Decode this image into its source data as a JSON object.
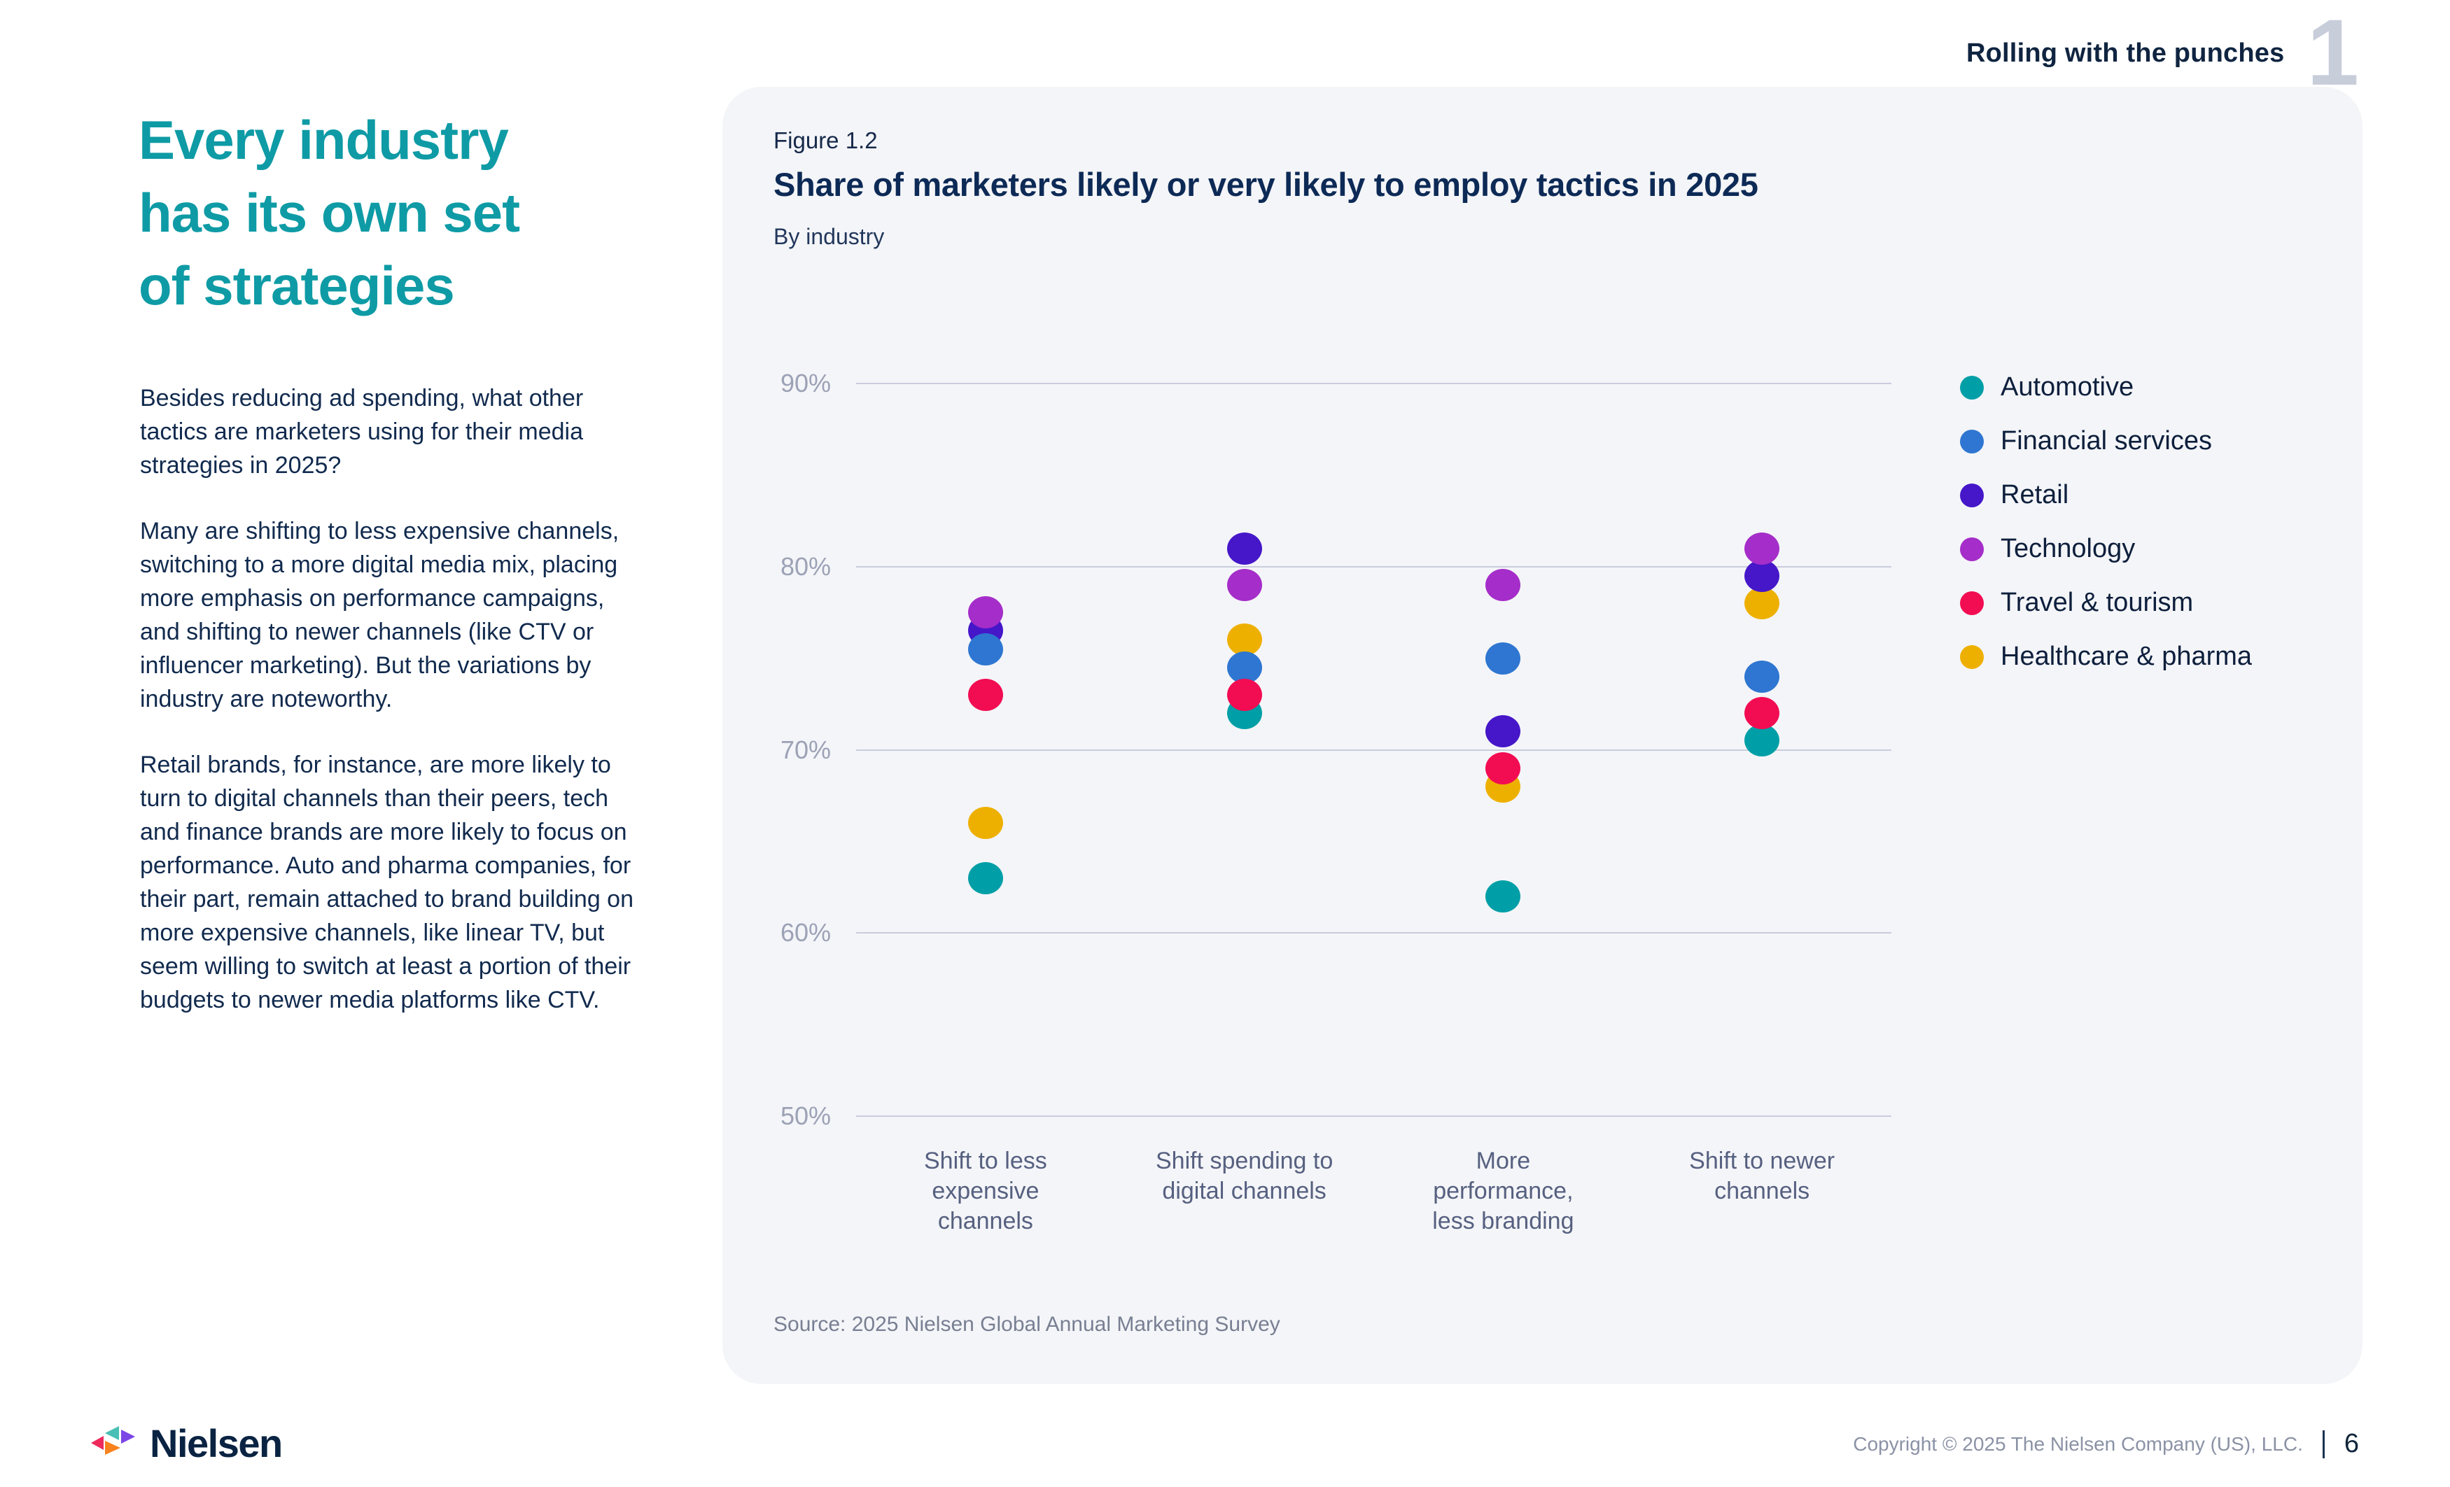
{
  "header": {
    "section_title": "Rolling with the punches",
    "section_number": "1"
  },
  "sidebar": {
    "heading_color": "#0e9ba5",
    "heading_lines": [
      "Every industry",
      "has its own set",
      "of strategies"
    ],
    "paragraphs": [
      "Besides reducing ad spending, what other tactics are marketers using for their media strategies in 2025?",
      "Many are shifting to less expensive channels, switching to a more digital media mix, placing more emphasis on performance campaigns, and shifting to newer channels (like CTV or influencer marketing). But the variations by industry are noteworthy.",
      "Retail brands, for instance, are more likely to turn to digital channels than their peers, tech and finance brands are more likely to focus on performance. Auto and pharma companies, for their part, remain attached to brand building on more expensive channels, like linear TV, but seem willing to switch at least a portion of their budgets to newer media platforms like CTV."
    ]
  },
  "figure": {
    "label": "Figure 1.2",
    "title": "Share of marketers likely or very likely to employ tactics in 2025",
    "subtitle": "By industry",
    "source": "Source: 2025 Nielsen Global Annual Marketing Survey"
  },
  "chart_data": {
    "type": "scatter",
    "title": "Share of marketers likely or very likely to employ tactics in 2025",
    "subtitle": "By industry",
    "categories": [
      [
        "Shift to less",
        "expensive",
        "channels"
      ],
      [
        "Shift spending to",
        "digital channels"
      ],
      [
        "More",
        "performance,",
        "less branding"
      ],
      [
        "Shift to newer",
        "channels"
      ]
    ],
    "y_ticks": [
      "90%",
      "80%",
      "70%",
      "60%",
      "50%"
    ],
    "ylim": [
      50,
      90
    ],
    "grid": true,
    "legend_position": "right",
    "series": [
      {
        "name": "Automotive",
        "color": "#009fa7",
        "values": [
          63,
          72,
          62,
          70.5
        ]
      },
      {
        "name": "Financial services",
        "color": "#2e76d1",
        "values": [
          75.5,
          74.5,
          75,
          74
        ]
      },
      {
        "name": "Retail",
        "color": "#4517c9",
        "values": [
          76.5,
          81,
          71,
          79.5
        ]
      },
      {
        "name": "Technology",
        "color": "#a52dc9",
        "values": [
          77.5,
          79,
          79,
          81
        ]
      },
      {
        "name": "Travel & tourism",
        "color": "#f20c52",
        "values": [
          73,
          73,
          69,
          72
        ]
      },
      {
        "name": "Healthcare & pharma",
        "color": "#eeb000",
        "values": [
          66,
          76,
          68,
          78
        ]
      }
    ]
  },
  "footer": {
    "logo_text": "Nielsen",
    "copyright": "Copyright © 2025 The Nielsen Company (US), LLC.",
    "page_number": "6"
  }
}
